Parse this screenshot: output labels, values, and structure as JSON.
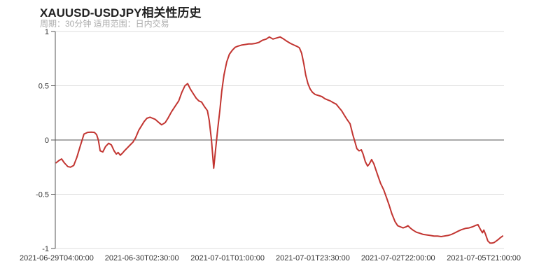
{
  "chart_data": {
    "type": "line",
    "title": "XAUUSD-USDJPY相关性历史",
    "subtitle": "周期：30分钟 适用范围：日内交易",
    "xlabel": "",
    "ylabel": "",
    "ylim": [
      -1,
      1
    ],
    "yticks": [
      1,
      0.5,
      0,
      -0.5,
      -1
    ],
    "xticks": [
      {
        "label": "2021-06-29T04:00:00",
        "pos": 0.003
      },
      {
        "label": "2021-06-30T02:30:00",
        "pos": 0.193
      },
      {
        "label": "2021-07-01T01:00:00",
        "pos": 0.384
      },
      {
        "label": "2021-07-01T23:30:00",
        "pos": 0.574
      },
      {
        "label": "2021-07-02T22:00:00",
        "pos": 0.764
      },
      {
        "label": "2021-07-05T21:00:00",
        "pos": 0.955
      }
    ],
    "grid": true,
    "legend": "none",
    "colors": {
      "line": "#c23531",
      "gridline": "#dddddd",
      "zero_line": "#555555",
      "axis": "#555555",
      "tick_label": "#333333",
      "title": "#222222",
      "subtitle": "#aaaaaa"
    },
    "series": [
      {
        "name": "XAUUSD-USDJPY 相关性",
        "points": [
          [
            0.002,
            -0.21
          ],
          [
            0.008,
            -0.19
          ],
          [
            0.014,
            -0.175
          ],
          [
            0.02,
            -0.21
          ],
          [
            0.028,
            -0.245
          ],
          [
            0.034,
            -0.25
          ],
          [
            0.041,
            -0.235
          ],
          [
            0.048,
            -0.16
          ],
          [
            0.056,
            -0.05
          ],
          [
            0.064,
            0.055
          ],
          [
            0.072,
            0.07
          ],
          [
            0.08,
            0.072
          ],
          [
            0.087,
            0.07
          ],
          [
            0.092,
            0.05
          ],
          [
            0.096,
            0.0
          ],
          [
            0.1,
            -0.1
          ],
          [
            0.106,
            -0.11
          ],
          [
            0.112,
            -0.06
          ],
          [
            0.119,
            -0.03
          ],
          [
            0.125,
            -0.045
          ],
          [
            0.131,
            -0.1
          ],
          [
            0.136,
            -0.13
          ],
          [
            0.14,
            -0.115
          ],
          [
            0.145,
            -0.14
          ],
          [
            0.15,
            -0.12
          ],
          [
            0.154,
            -0.1
          ],
          [
            0.161,
            -0.07
          ],
          [
            0.167,
            -0.045
          ],
          [
            0.173,
            -0.02
          ],
          [
            0.179,
            0.02
          ],
          [
            0.186,
            0.09
          ],
          [
            0.192,
            0.13
          ],
          [
            0.198,
            0.17
          ],
          [
            0.204,
            0.2
          ],
          [
            0.211,
            0.21
          ],
          [
            0.217,
            0.2
          ],
          [
            0.223,
            0.19
          ],
          [
            0.231,
            0.16
          ],
          [
            0.237,
            0.14
          ],
          [
            0.245,
            0.16
          ],
          [
            0.251,
            0.2
          ],
          [
            0.259,
            0.26
          ],
          [
            0.267,
            0.31
          ],
          [
            0.275,
            0.36
          ],
          [
            0.282,
            0.44
          ],
          [
            0.289,
            0.5
          ],
          [
            0.295,
            0.52
          ],
          [
            0.301,
            0.47
          ],
          [
            0.307,
            0.43
          ],
          [
            0.314,
            0.385
          ],
          [
            0.32,
            0.36
          ],
          [
            0.326,
            0.35
          ],
          [
            0.332,
            0.31
          ],
          [
            0.339,
            0.27
          ],
          [
            0.343,
            0.18
          ],
          [
            0.348,
            0.0
          ],
          [
            0.353,
            -0.26
          ],
          [
            0.357,
            -0.1
          ],
          [
            0.362,
            0.1
          ],
          [
            0.367,
            0.28
          ],
          [
            0.371,
            0.45
          ],
          [
            0.376,
            0.6
          ],
          [
            0.382,
            0.72
          ],
          [
            0.388,
            0.79
          ],
          [
            0.395,
            0.83
          ],
          [
            0.401,
            0.855
          ],
          [
            0.407,
            0.865
          ],
          [
            0.415,
            0.875
          ],
          [
            0.423,
            0.88
          ],
          [
            0.431,
            0.885
          ],
          [
            0.438,
            0.885
          ],
          [
            0.446,
            0.89
          ],
          [
            0.454,
            0.9
          ],
          [
            0.462,
            0.92
          ],
          [
            0.47,
            0.93
          ],
          [
            0.477,
            0.95
          ],
          [
            0.485,
            0.93
          ],
          [
            0.493,
            0.94
          ],
          [
            0.501,
            0.95
          ],
          [
            0.509,
            0.93
          ],
          [
            0.516,
            0.91
          ],
          [
            0.524,
            0.89
          ],
          [
            0.532,
            0.875
          ],
          [
            0.54,
            0.86
          ],
          [
            0.544,
            0.85
          ],
          [
            0.549,
            0.8
          ],
          [
            0.554,
            0.7
          ],
          [
            0.558,
            0.6
          ],
          [
            0.563,
            0.52
          ],
          [
            0.568,
            0.47
          ],
          [
            0.573,
            0.44
          ],
          [
            0.579,
            0.42
          ],
          [
            0.587,
            0.41
          ],
          [
            0.594,
            0.4
          ],
          [
            0.601,
            0.38
          ],
          [
            0.607,
            0.37
          ],
          [
            0.613,
            0.36
          ],
          [
            0.619,
            0.345
          ],
          [
            0.626,
            0.33
          ],
          [
            0.632,
            0.3
          ],
          [
            0.638,
            0.27
          ],
          [
            0.644,
            0.23
          ],
          [
            0.65,
            0.19
          ],
          [
            0.657,
            0.15
          ],
          [
            0.663,
            0.05
          ],
          [
            0.668,
            -0.02
          ],
          [
            0.672,
            -0.08
          ],
          [
            0.677,
            -0.1
          ],
          [
            0.682,
            -0.09
          ],
          [
            0.686,
            -0.13
          ],
          [
            0.691,
            -0.2
          ],
          [
            0.696,
            -0.24
          ],
          [
            0.7,
            -0.22
          ],
          [
            0.705,
            -0.18
          ],
          [
            0.71,
            -0.22
          ],
          [
            0.714,
            -0.27
          ],
          [
            0.719,
            -0.33
          ],
          [
            0.725,
            -0.4
          ],
          [
            0.732,
            -0.46
          ],
          [
            0.738,
            -0.53
          ],
          [
            0.744,
            -0.6
          ],
          [
            0.75,
            -0.68
          ],
          [
            0.757,
            -0.75
          ],
          [
            0.763,
            -0.79
          ],
          [
            0.769,
            -0.8
          ],
          [
            0.775,
            -0.81
          ],
          [
            0.782,
            -0.8
          ],
          [
            0.786,
            -0.79
          ],
          [
            0.791,
            -0.81
          ],
          [
            0.797,
            -0.83
          ],
          [
            0.805,
            -0.85
          ],
          [
            0.813,
            -0.86
          ],
          [
            0.82,
            -0.87
          ],
          [
            0.828,
            -0.875
          ],
          [
            0.836,
            -0.88
          ],
          [
            0.844,
            -0.885
          ],
          [
            0.852,
            -0.885
          ],
          [
            0.86,
            -0.89
          ],
          [
            0.867,
            -0.885
          ],
          [
            0.875,
            -0.88
          ],
          [
            0.883,
            -0.87
          ],
          [
            0.891,
            -0.855
          ],
          [
            0.898,
            -0.84
          ],
          [
            0.906,
            -0.825
          ],
          [
            0.914,
            -0.815
          ],
          [
            0.922,
            -0.81
          ],
          [
            0.93,
            -0.8
          ],
          [
            0.938,
            -0.785
          ],
          [
            0.942,
            -0.78
          ],
          [
            0.947,
            -0.82
          ],
          [
            0.952,
            -0.855
          ],
          [
            0.955,
            -0.83
          ],
          [
            0.959,
            -0.87
          ],
          [
            0.964,
            -0.93
          ],
          [
            0.969,
            -0.95
          ],
          [
            0.973,
            -0.95
          ],
          [
            0.978,
            -0.945
          ],
          [
            0.983,
            -0.93
          ],
          [
            0.988,
            -0.915
          ],
          [
            0.992,
            -0.9
          ],
          [
            0.997,
            -0.885
          ]
        ]
      }
    ]
  }
}
